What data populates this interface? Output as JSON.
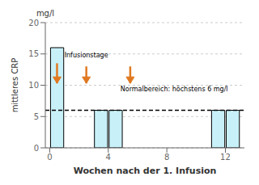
{
  "chart_data": {
    "type": "bar",
    "x": [
      0.5,
      3.5,
      4.5,
      11.5,
      12.5
    ],
    "values": [
      16,
      6,
      6,
      6,
      6
    ],
    "color": "#c8f0f8",
    "xlabel": "Wochen nach der 1. Infusion",
    "ylabel": "mittleres CRP",
    "y_unit": "mg/l",
    "xlim": [
      -0.3,
      13.3
    ],
    "xticks": [
      0,
      4,
      8,
      12
    ],
    "ylim": [
      0,
      20
    ],
    "yticks": [
      0,
      5,
      10,
      15,
      20
    ],
    "grid": true,
    "threshold": 6,
    "annotations": [
      {
        "text": "Normalbereich: höchstens 6 mg/l",
        "x": 8.5,
        "y": 8.8
      },
      {
        "text": "Infusionstage",
        "x": 2.5,
        "y": 14.2
      }
    ],
    "arrows": {
      "color": "#e07820",
      "items": [
        {
          "x": 0.5,
          "y_start": 13.5,
          "y_end": 10.3
        },
        {
          "x": 2.5,
          "y_start": 13.0,
          "y_end": 10.3
        },
        {
          "x": 5.5,
          "y_start": 13.0,
          "y_end": 10.3
        }
      ]
    }
  }
}
